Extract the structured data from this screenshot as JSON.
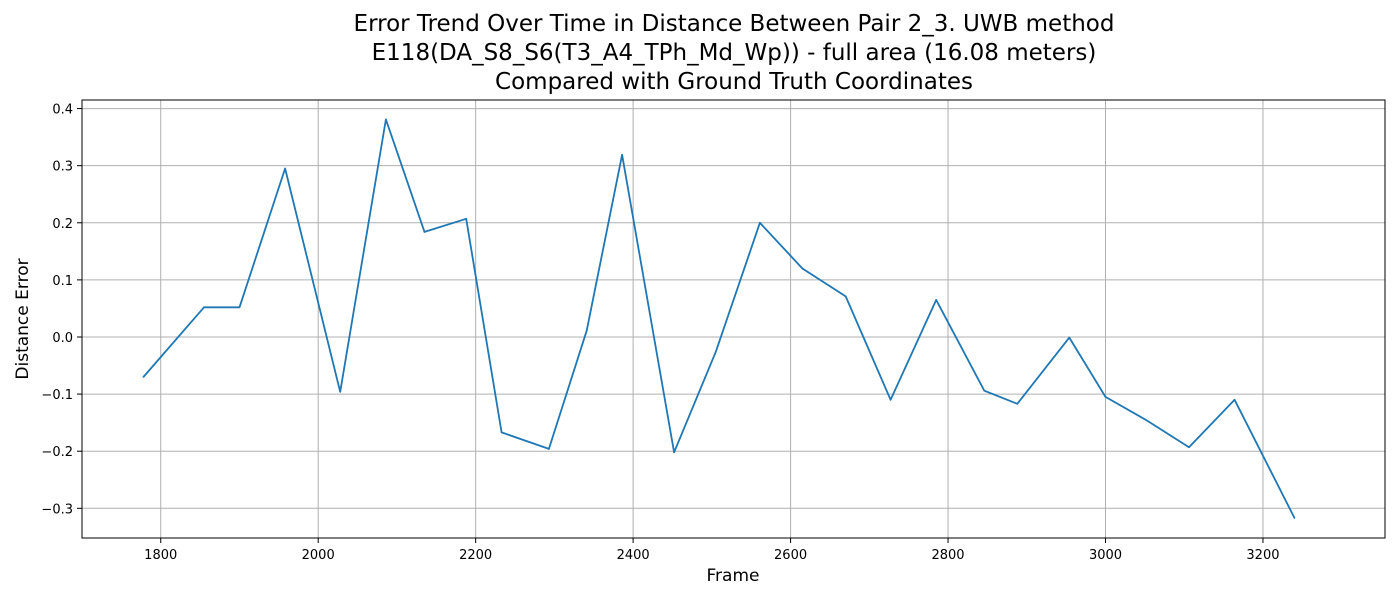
{
  "chart_data": {
    "type": "line",
    "title_lines": [
      "Error Trend Over Time in Distance Between Pair 2_3. UWB method",
      "E118(DA_S8_S6(T3_A4_TPh_Md_Wp)) - full area (16.08 meters)",
      "Compared with Ground Truth Coordinates"
    ],
    "xlabel": "Frame",
    "ylabel": "Distance Error",
    "xlim": [
      1700,
      3355
    ],
    "ylim": [
      -0.352,
      0.415
    ],
    "xticks": [
      1800,
      2000,
      2200,
      2400,
      2600,
      2800,
      3000,
      3200
    ],
    "yticks": [
      -0.3,
      -0.2,
      -0.1,
      0.0,
      0.1,
      0.2,
      0.3,
      0.4
    ],
    "ytick_labels": [
      "−0.3",
      "−0.2",
      "−0.1",
      "0.0",
      "0.1",
      "0.2",
      "0.3",
      "0.4"
    ],
    "grid": true,
    "line_color": "#1f77b4",
    "x": [
      1778,
      1855,
      1900,
      1958,
      2028,
      2086,
      2135,
      2188,
      2233,
      2293,
      2341,
      2386,
      2452,
      2505,
      2561,
      2615,
      2670,
      2727,
      2785,
      2846,
      2888,
      2954,
      3000,
      3051,
      3106,
      3164,
      3240
    ],
    "y": [
      -0.07,
      0.052,
      0.052,
      0.295,
      -0.096,
      0.381,
      0.184,
      0.207,
      -0.167,
      -0.196,
      0.011,
      0.319,
      -0.202,
      -0.026,
      0.2,
      0.12,
      0.071,
      -0.11,
      0.065,
      -0.094,
      -0.117,
      -0.001,
      -0.105,
      -0.145,
      -0.193,
      -0.11,
      -0.317
    ]
  }
}
